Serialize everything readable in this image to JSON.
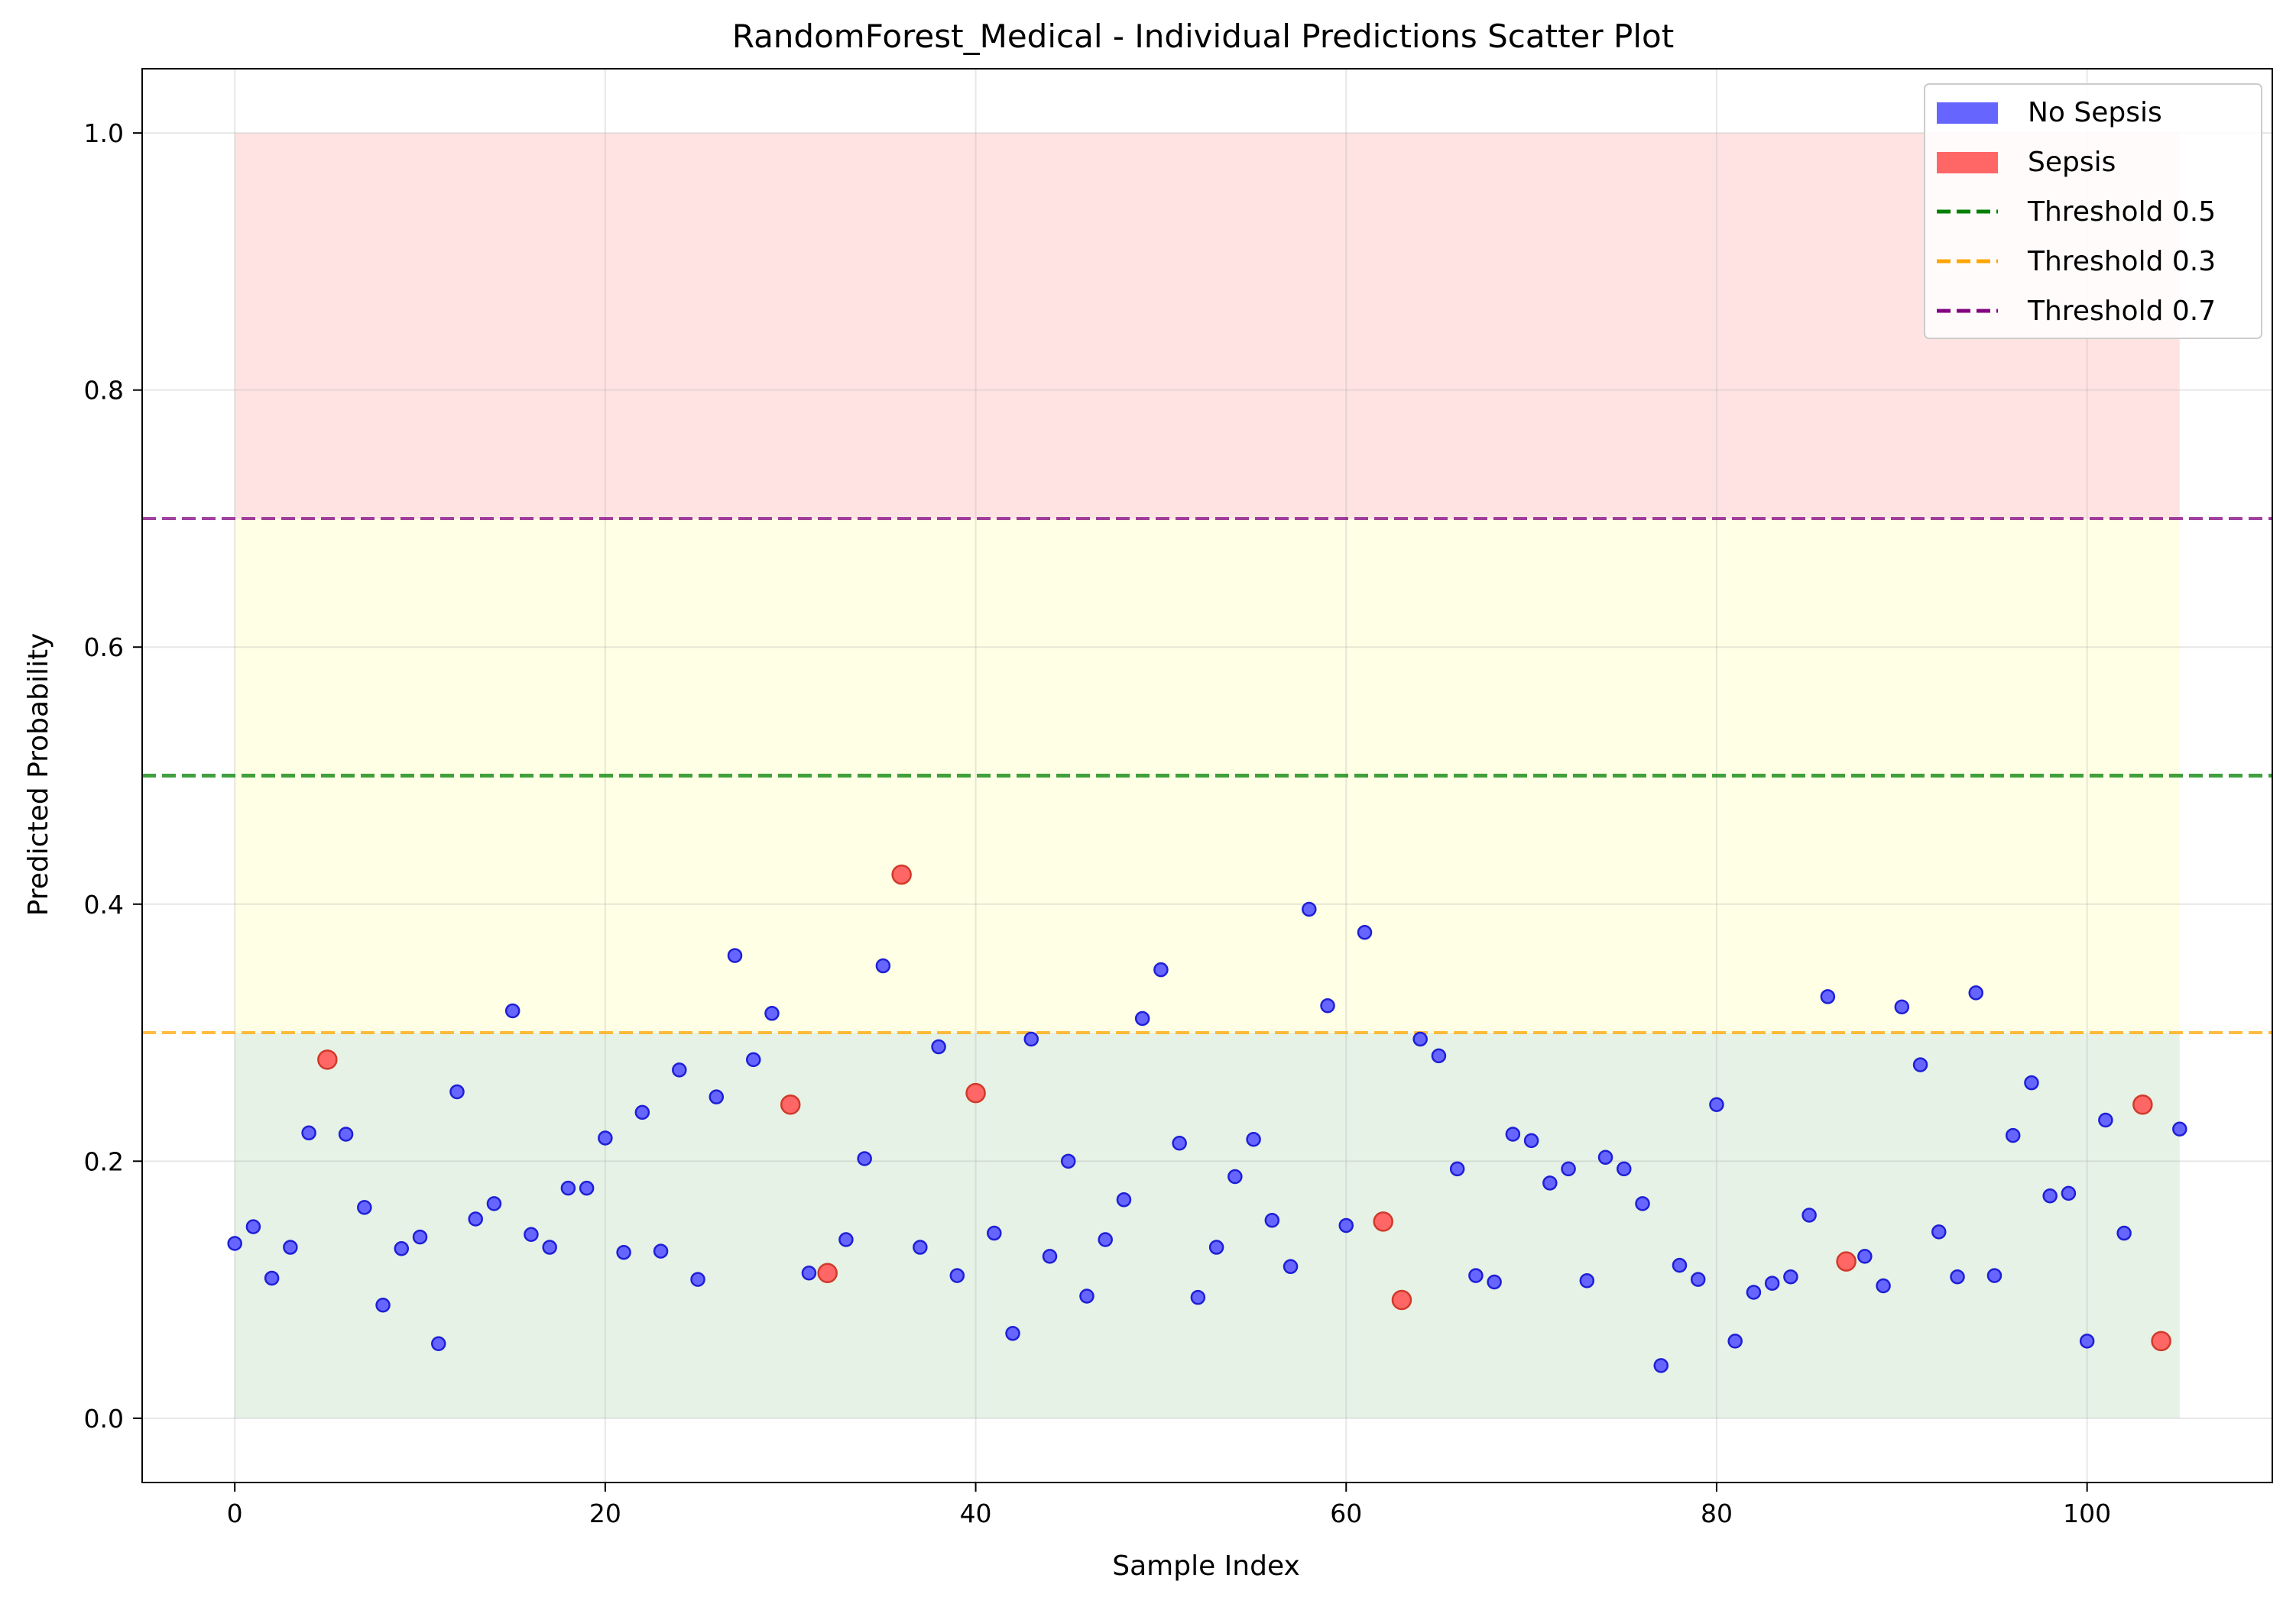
{
  "chart_data": {
    "type": "scatter",
    "title": "RandomForest_Medical - Individual Predictions Scatter Plot",
    "xlabel": "Sample Index",
    "ylabel": "Predicted Probability",
    "xlim": [
      -5,
      110
    ],
    "ylim": [
      -0.05,
      1.05
    ],
    "x_ticks": [
      0,
      20,
      40,
      60,
      80,
      100
    ],
    "y_ticks": [
      0.0,
      0.2,
      0.4,
      0.6,
      0.8,
      1.0
    ],
    "x_tick_labels": [
      "0",
      "20",
      "40",
      "60",
      "80",
      "100"
    ],
    "y_tick_labels": [
      "0.0",
      "0.2",
      "0.4",
      "0.6",
      "0.8",
      "1.0"
    ],
    "grid": true,
    "legend_position": "top-right",
    "bands": [
      {
        "y0": 0.0,
        "y1": 0.3,
        "x0": 0,
        "x1": 105,
        "color": "#008000",
        "opacity": 0.1
      },
      {
        "y0": 0.3,
        "y1": 0.7,
        "x0": 0,
        "x1": 105,
        "color": "#ffff00",
        "opacity": 0.1
      },
      {
        "y0": 0.7,
        "y1": 1.0,
        "x0": 0,
        "x1": 105,
        "color": "#ff0000",
        "opacity": 0.11
      }
    ],
    "thresholds": [
      {
        "name": "Threshold 0.5",
        "value": 0.5,
        "color": "#008000",
        "width": 5
      },
      {
        "name": "Threshold 0.3",
        "value": 0.3,
        "color": "#ffa500",
        "width": 4
      },
      {
        "name": "Threshold 0.7",
        "value": 0.7,
        "color": "#800080",
        "width": 4
      }
    ],
    "series": [
      {
        "name": "No Sepsis",
        "color": "#6666ff",
        "points": [
          [
            0,
            0.136
          ],
          [
            1,
            0.149
          ],
          [
            2,
            0.109
          ],
          [
            3,
            0.133
          ],
          [
            4,
            0.222
          ],
          [
            6,
            0.221
          ],
          [
            7,
            0.164
          ],
          [
            8,
            0.088
          ],
          [
            9,
            0.132
          ],
          [
            10,
            0.141
          ],
          [
            11,
            0.058
          ],
          [
            12,
            0.254
          ],
          [
            13,
            0.155
          ],
          [
            14,
            0.167
          ],
          [
            15,
            0.317
          ],
          [
            16,
            0.143
          ],
          [
            17,
            0.133
          ],
          [
            18,
            0.179
          ],
          [
            19,
            0.179
          ],
          [
            20,
            0.218
          ],
          [
            21,
            0.129
          ],
          [
            22,
            0.238
          ],
          [
            23,
            0.13
          ],
          [
            24,
            0.271
          ],
          [
            25,
            0.108
          ],
          [
            26,
            0.25
          ],
          [
            27,
            0.36
          ],
          [
            28,
            0.279
          ],
          [
            29,
            0.315
          ],
          [
            31,
            0.113
          ],
          [
            33,
            0.139
          ],
          [
            34,
            0.202
          ],
          [
            35,
            0.352
          ],
          [
            37,
            0.133
          ],
          [
            38,
            0.289
          ],
          [
            39,
            0.111
          ],
          [
            41,
            0.144
          ],
          [
            42,
            0.066
          ],
          [
            43,
            0.295
          ],
          [
            44,
            0.126
          ],
          [
            45,
            0.2
          ],
          [
            46,
            0.095
          ],
          [
            47,
            0.139
          ],
          [
            48,
            0.17
          ],
          [
            49,
            0.311
          ],
          [
            50,
            0.349
          ],
          [
            51,
            0.214
          ],
          [
            52,
            0.094
          ],
          [
            53,
            0.133
          ],
          [
            54,
            0.188
          ],
          [
            55,
            0.217
          ],
          [
            56,
            0.154
          ],
          [
            57,
            0.118
          ],
          [
            58,
            0.396
          ],
          [
            59,
            0.321
          ],
          [
            60,
            0.15
          ],
          [
            61,
            0.378
          ],
          [
            64,
            0.295
          ],
          [
            65,
            0.282
          ],
          [
            66,
            0.194
          ],
          [
            67,
            0.111
          ],
          [
            68,
            0.106
          ],
          [
            69,
            0.221
          ],
          [
            70,
            0.216
          ],
          [
            71,
            0.183
          ],
          [
            72,
            0.194
          ],
          [
            73,
            0.107
          ],
          [
            74,
            0.203
          ],
          [
            75,
            0.194
          ],
          [
            76,
            0.167
          ],
          [
            77,
            0.041
          ],
          [
            78,
            0.119
          ],
          [
            79,
            0.108
          ],
          [
            80,
            0.244
          ],
          [
            81,
            0.06
          ],
          [
            82,
            0.098
          ],
          [
            83,
            0.105
          ],
          [
            84,
            0.11
          ],
          [
            85,
            0.158
          ],
          [
            86,
            0.328
          ],
          [
            88,
            0.126
          ],
          [
            89,
            0.103
          ],
          [
            90,
            0.32
          ],
          [
            91,
            0.275
          ],
          [
            92,
            0.145
          ],
          [
            93,
            0.11
          ],
          [
            94,
            0.331
          ],
          [
            95,
            0.111
          ],
          [
            96,
            0.22
          ],
          [
            97,
            0.261
          ],
          [
            98,
            0.173
          ],
          [
            99,
            0.175
          ],
          [
            100,
            0.06
          ],
          [
            101,
            0.232
          ],
          [
            102,
            0.144
          ],
          [
            105,
            0.225
          ]
        ]
      },
      {
        "name": "Sepsis",
        "color": "#ff6666",
        "points": [
          [
            5,
            0.279
          ],
          [
            30,
            0.244
          ],
          [
            32,
            0.113
          ],
          [
            36,
            0.423
          ],
          [
            40,
            0.253
          ],
          [
            62,
            0.153
          ],
          [
            63,
            0.092
          ],
          [
            87,
            0.122
          ],
          [
            103,
            0.244
          ],
          [
            104,
            0.06
          ]
        ]
      }
    ]
  }
}
